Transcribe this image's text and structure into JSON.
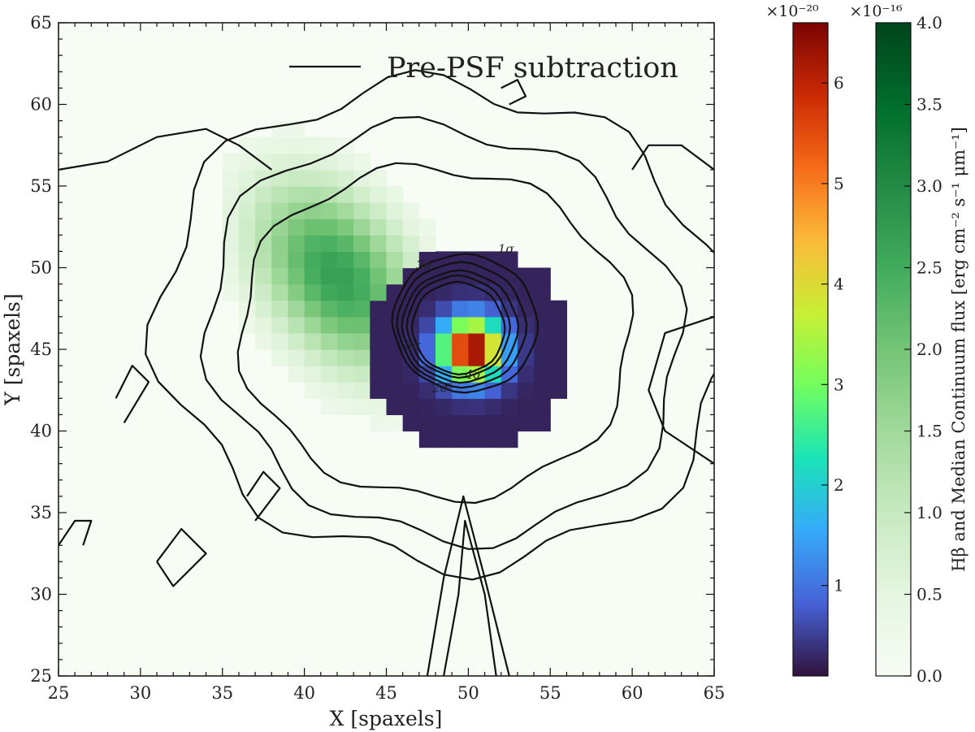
{
  "chart_data": {
    "type": "heatmap",
    "title": "",
    "xlabel": "X [spaxels]",
    "ylabel": "Y [spaxels]",
    "xlim": [
      25,
      65
    ],
    "ylim": [
      25,
      65
    ],
    "x_ticks": [
      25,
      30,
      35,
      40,
      45,
      50,
      55,
      60,
      65
    ],
    "y_ticks": [
      25,
      30,
      35,
      40,
      45,
      50,
      55,
      60,
      65
    ],
    "legend": {
      "position": "top",
      "entries": [
        {
          "label": "Pre-PSF subtraction",
          "style": "black-line"
        }
      ]
    },
    "contour_labels": [
      {
        "text": "1σ",
        "x": 52.3,
        "y": 50.9
      },
      {
        "text": "3σ",
        "x": 47.3,
        "y": 49.9
      },
      {
        "text": "5σ",
        "x": 46.6,
        "y": 45.0
      },
      {
        "text": "2σ",
        "x": 48.3,
        "y": 42.4
      },
      {
        "text": "4σ",
        "x": 50.3,
        "y": 43.2
      }
    ],
    "continuum_map": {
      "name": "Median Continuum",
      "colormap": "Greens",
      "vmin": 0.0,
      "vmax": 4.0,
      "center": [
        42.0,
        49.5
      ],
      "peak": 2.7,
      "extent_x": [
        35.5,
        54.5
      ],
      "extent_y": [
        39.5,
        59.5
      ]
    },
    "hbeta_map": {
      "name": "Hβ",
      "colormap": "turbo",
      "vmin": 0.1,
      "vmax": 6.6,
      "center": [
        50.2,
        45.0
      ],
      "peak": 6.6,
      "extent_x": [
        43.5,
        56.5
      ],
      "extent_y": [
        38.5,
        53.5
      ]
    },
    "colorbars": [
      {
        "name": "Hβ",
        "exponent_label": "×10⁻²⁰",
        "ticks": [
          1,
          2,
          3,
          4,
          5,
          6
        ],
        "range": [
          0.1,
          6.6
        ],
        "colors": [
          "#30123b",
          "#4662d7",
          "#36aaf9",
          "#1ae4b6",
          "#72fe5e",
          "#c8ef34",
          "#faba39",
          "#f66b19",
          "#cb2a04",
          "#7a0403"
        ]
      },
      {
        "name": "Continuum",
        "exponent_label": "×10⁻¹⁶",
        "ticks": [
          0.0,
          0.5,
          1.0,
          1.5,
          2.0,
          2.5,
          3.0,
          3.5,
          4.0
        ],
        "range": [
          0.0,
          4.0
        ],
        "colors": [
          "#f7fcf5",
          "#e5f5e0",
          "#c7e9c0",
          "#a1d99b",
          "#74c476",
          "#41ab5d",
          "#238b45",
          "#006d2c",
          "#00441b"
        ]
      }
    ],
    "colorbar_label": "Hβ and Median Continuum flux [erg cm⁻² s⁻¹ μm⁻¹]"
  }
}
